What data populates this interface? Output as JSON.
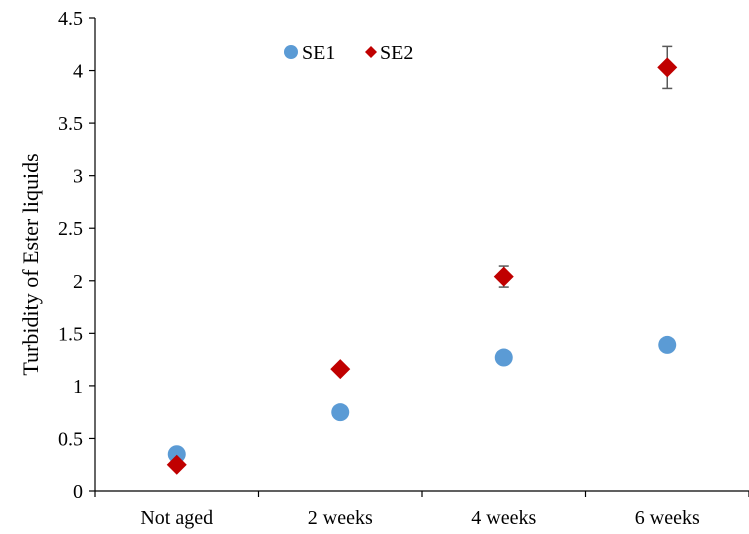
{
  "chart_data": {
    "type": "scatter",
    "categories": [
      "Not aged",
      "2 weeks",
      "4 weeks",
      "6 weeks"
    ],
    "series": [
      {
        "name": "SE1",
        "marker": "circle",
        "color": "#5b9bd5",
        "values": [
          0.35,
          0.75,
          1.27,
          1.39
        ]
      },
      {
        "name": "SE2",
        "marker": "diamond",
        "color": "#c00000",
        "values": [
          0.25,
          1.16,
          2.04,
          4.03
        ],
        "error": [
          0.0,
          0.03,
          0.1,
          0.2
        ]
      }
    ],
    "title": "",
    "xlabel": "",
    "ylabel": "Turbidity of Ester liquids",
    "ylim": [
      0,
      4.5
    ],
    "yticks": [
      "0",
      "0.5",
      "1",
      "1.5",
      "2",
      "2.5",
      "3",
      "3.5",
      "4",
      "4.5"
    ],
    "grid": false,
    "legend_position": "top"
  }
}
